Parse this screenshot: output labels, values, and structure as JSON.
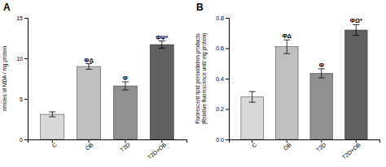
{
  "chart_data": [
    {
      "type": "bar",
      "title": "A",
      "categories": [
        "C",
        "OB",
        "T2D",
        "T2D+OB"
      ],
      "values": [
        3.1,
        9.0,
        6.6,
        11.7
      ],
      "errors": [
        0.3,
        0.35,
        0.5,
        0.45
      ],
      "colors": [
        "#d8d8d8",
        "#c0c0c0",
        "#909090",
        "#606060"
      ],
      "ylabel": "nmoles of MDA / mg protein",
      "ylim": [
        0,
        15
      ],
      "yticks": [
        0,
        5,
        10,
        15
      ],
      "annotations": [
        null,
        "ΦΔ",
        "Φ",
        "ΦΨ*"
      ],
      "grid": false
    },
    {
      "type": "bar",
      "title": "B",
      "categories": [
        "C",
        "OB",
        "T2D",
        "T2D+OB"
      ],
      "values": [
        0.28,
        0.61,
        0.435,
        0.72
      ],
      "errors": [
        0.035,
        0.045,
        0.03,
        0.035
      ],
      "colors": [
        "#d8d8d8",
        "#c0c0c0",
        "#909090",
        "#606060"
      ],
      "ylabel": "Fluorescent lipid peroxidation products\n(Relative fluorescence unit/ mg protein)",
      "ylim": [
        0,
        0.8
      ],
      "yticks": [
        {
          "value": 0.0,
          "label": "0.0"
        },
        0.2,
        0.4,
        0.6,
        0.8
      ],
      "annotations": [
        null,
        "ΦΔ",
        "Φ",
        "ΦΩ*"
      ],
      "grid": false
    }
  ]
}
